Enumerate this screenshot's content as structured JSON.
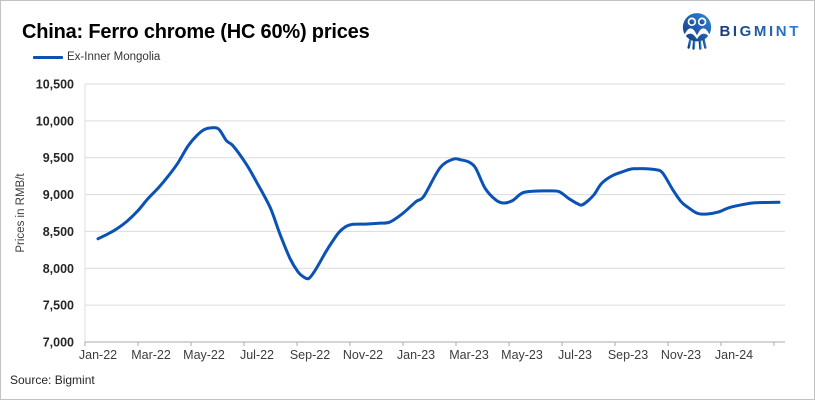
{
  "chart": {
    "title": "China: Ferro chrome (HC 60%) prices",
    "legend_label": "Ex-Inner Mongolia",
    "ylabel": "Prices in RMB/t"
  },
  "logo": {
    "text": "BIGMINT",
    "icon": "bigmint-people-circle-icon"
  },
  "footer": {
    "source": "Source: Bigmint"
  },
  "colors": {
    "line": "#0b52b4",
    "grid": "#dcdcdc",
    "axis": "#ababab",
    "ytick_label": "#262626",
    "xtick_label": "#3d3d3d",
    "logo_gradient_dark": "#16397b",
    "logo_gradient_light": "#2e7fd6"
  },
  "chart_data": {
    "type": "line",
    "title": "China: Ferro chrome (HC 60%) prices",
    "ylabel": "Prices in RMB/t",
    "xlabel": "",
    "ylim": [
      7000,
      10500
    ],
    "ytick_step": 500,
    "ytick_labels": [
      "7,000",
      "7,500",
      "8,000",
      "8,500",
      "9,000",
      "9,500",
      "10,000",
      "10,500"
    ],
    "xtick_labels": [
      "Jan-22",
      "Mar-22",
      "May-22",
      "Jul-22",
      "Sep-22",
      "Nov-22",
      "Jan-23",
      "Mar-23",
      "May-23",
      "Jul-23",
      "Sep-23",
      "Nov-23",
      "Jan-24"
    ],
    "x_unit": "months since Jan-2022 (0 = Jan-22, labels every 2 months)",
    "grid": "horizontal",
    "legend_position": "top-left",
    "series": [
      {
        "name": "Ex-Inner Mongolia",
        "color": "#0b52b4",
        "points": [
          [
            0,
            8400
          ],
          [
            0.4,
            8470
          ],
          [
            0.75,
            8545
          ],
          [
            1.1,
            8640
          ],
          [
            1.5,
            8780
          ],
          [
            1.9,
            8950
          ],
          [
            2.3,
            9100
          ],
          [
            2.65,
            9250
          ],
          [
            3.0,
            9420
          ],
          [
            3.4,
            9660
          ],
          [
            3.75,
            9810
          ],
          [
            4.0,
            9880
          ],
          [
            4.25,
            9905
          ],
          [
            4.55,
            9890
          ],
          [
            4.85,
            9730
          ],
          [
            5.1,
            9660
          ],
          [
            5.6,
            9410
          ],
          [
            6.0,
            9160
          ],
          [
            6.5,
            8820
          ],
          [
            6.85,
            8480
          ],
          [
            7.25,
            8130
          ],
          [
            7.55,
            7950
          ],
          [
            7.75,
            7885
          ],
          [
            7.95,
            7862
          ],
          [
            8.2,
            7975
          ],
          [
            8.6,
            8225
          ],
          [
            8.85,
            8365
          ],
          [
            9.1,
            8490
          ],
          [
            9.35,
            8565
          ],
          [
            9.6,
            8595
          ],
          [
            10.1,
            8600
          ],
          [
            10.6,
            8612
          ],
          [
            11.0,
            8625
          ],
          [
            11.5,
            8745
          ],
          [
            12.0,
            8905
          ],
          [
            12.3,
            8980
          ],
          [
            12.9,
            9360
          ],
          [
            13.4,
            9480
          ],
          [
            13.7,
            9470
          ],
          [
            14.0,
            9440
          ],
          [
            14.25,
            9360
          ],
          [
            14.6,
            9090
          ],
          [
            15.0,
            8930
          ],
          [
            15.3,
            8885
          ],
          [
            15.65,
            8920
          ],
          [
            16.0,
            9020
          ],
          [
            16.4,
            9045
          ],
          [
            17.0,
            9050
          ],
          [
            17.4,
            9040
          ],
          [
            17.75,
            8950
          ],
          [
            18.1,
            8875
          ],
          [
            18.3,
            8865
          ],
          [
            18.7,
            8990
          ],
          [
            19.0,
            9150
          ],
          [
            19.4,
            9255
          ],
          [
            19.8,
            9310
          ],
          [
            20.1,
            9345
          ],
          [
            20.5,
            9352
          ],
          [
            21.0,
            9340
          ],
          [
            21.3,
            9295
          ],
          [
            21.7,
            9060
          ],
          [
            22.0,
            8905
          ],
          [
            22.25,
            8830
          ],
          [
            22.6,
            8748
          ],
          [
            22.95,
            8735
          ],
          [
            23.4,
            8762
          ],
          [
            23.8,
            8820
          ],
          [
            24.3,
            8862
          ],
          [
            24.8,
            8888
          ],
          [
            25.7,
            8895
          ]
        ]
      }
    ],
    "monthly_approx": {
      "Jan-22": 8400,
      "Feb-22": 8600,
      "Mar-22": 8950,
      "Apr-22": 9420,
      "May-22": 9880,
      "Jun-22": 9680,
      "Jul-22": 9160,
      "Aug-22": 8200,
      "Sep-22": 7900,
      "Oct-22": 8450,
      "Nov-22": 8590,
      "Dec-22": 8625,
      "Jan-23": 8905,
      "Feb-23": 9360,
      "Mar-23": 9440,
      "Apr-23": 8930,
      "May-23": 9020,
      "Jun-23": 9050,
      "Jul-23": 8870,
      "Aug-23": 9150,
      "Sep-23": 9345,
      "Oct-23": 9345,
      "Nov-23": 8905,
      "Dec-23": 8735,
      "Jan-24": 8835,
      "Feb-24": 8895
    }
  }
}
